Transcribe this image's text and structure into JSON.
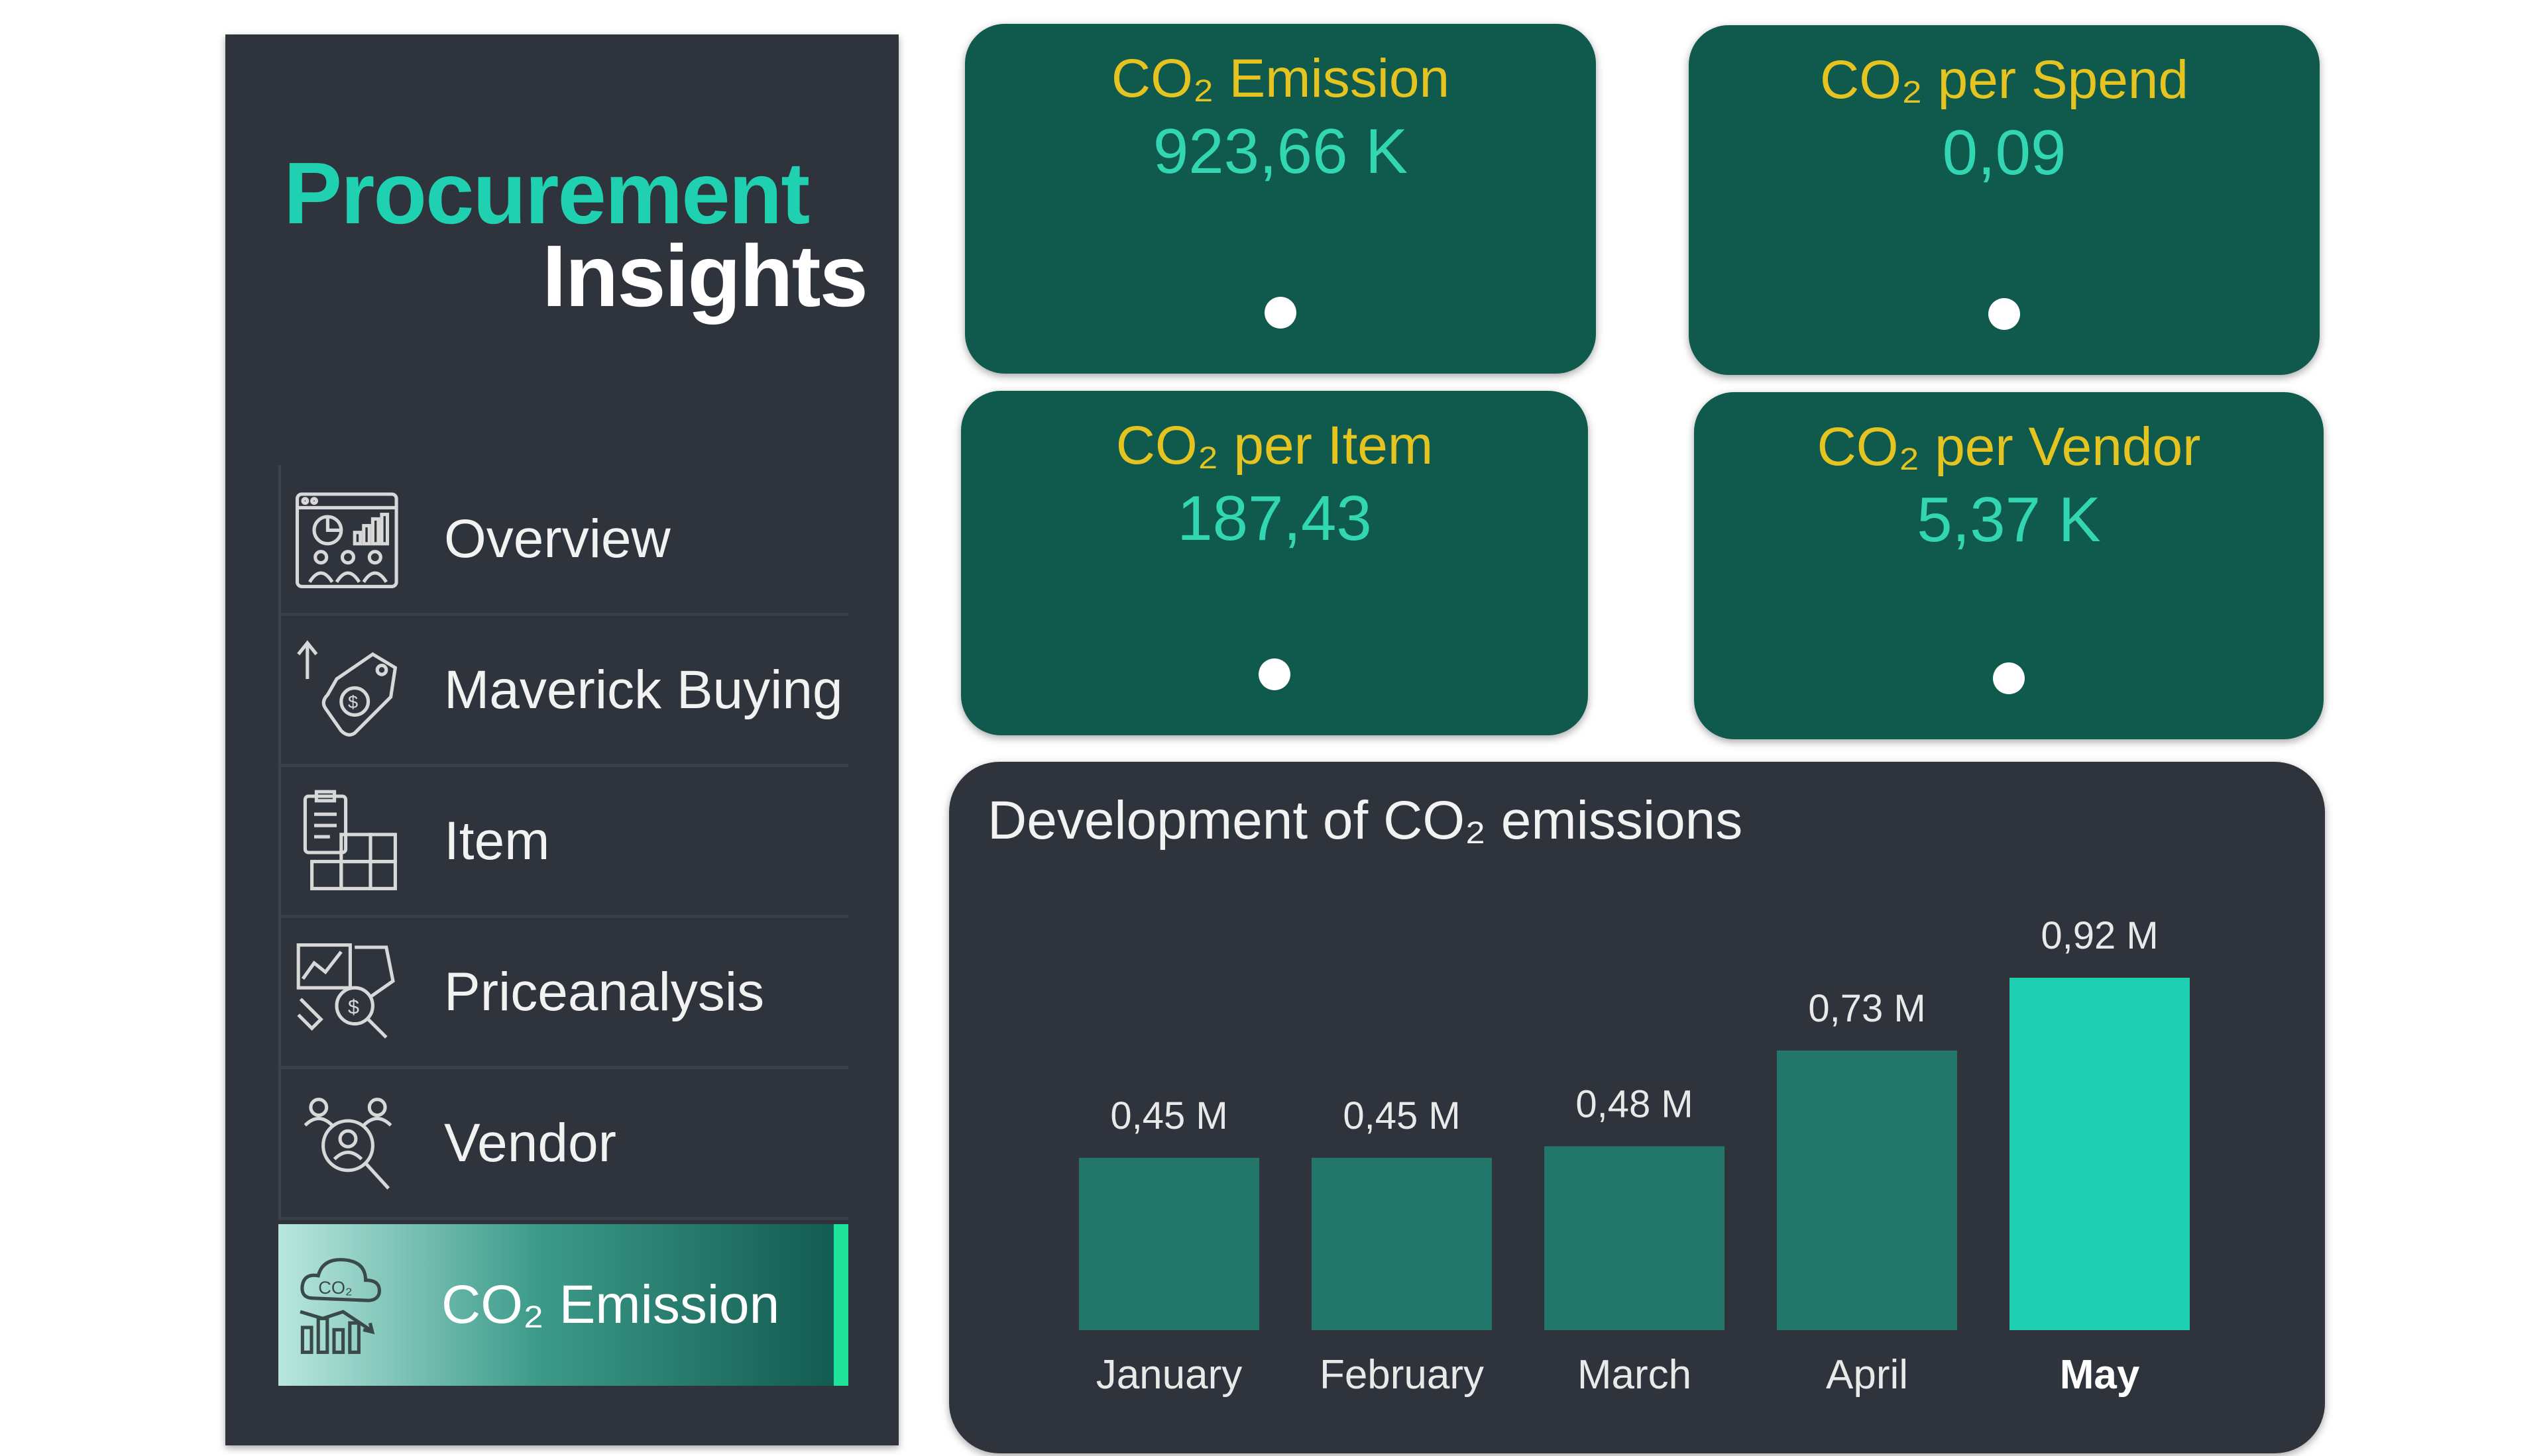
{
  "brand": {
    "line1": "Procurement",
    "line2": "Insights"
  },
  "nav": {
    "items": [
      {
        "label": "Overview",
        "icon": "dashboard-icon",
        "active": false
      },
      {
        "label": "Maverick Buying",
        "icon": "price-tag-icon",
        "active": false
      },
      {
        "label": "Item",
        "icon": "clipboard-boxes-icon",
        "active": false
      },
      {
        "label": "Priceanalysis",
        "icon": "price-analysis-icon",
        "active": false
      },
      {
        "label": "Vendor",
        "icon": "vendor-search-icon",
        "active": false
      },
      {
        "label": "CO₂ Emission",
        "icon": "co2-cloud-icon",
        "active": true
      }
    ]
  },
  "kpis": [
    {
      "title": "CO₂ Emission",
      "value": "923,66 K"
    },
    {
      "title": "CO₂ per Spend",
      "value": "0,09"
    },
    {
      "title": "CO₂ per Item",
      "value": "187,43"
    },
    {
      "title": "CO₂ per Vendor",
      "value": "5,37 K"
    }
  ],
  "colors": {
    "sidebar_bg": "#2f333b",
    "brand_accent": "#1fd1b0",
    "card_bg": "#0f5a4d",
    "card_title": "#e5c320",
    "card_value": "#32d7b2",
    "bar_default": "#22766a",
    "bar_highlight": "#1dcfb0",
    "active_indicator": "#1fe39b"
  },
  "chart_data": {
    "type": "bar",
    "title": "Development of CO₂ emissions",
    "categories": [
      "January",
      "February",
      "March",
      "April",
      "May"
    ],
    "values": [
      0.45,
      0.45,
      0.48,
      0.73,
      0.92
    ],
    "data_labels": [
      "0,45 M",
      "0,45 M",
      "0,48 M",
      "0,73 M",
      "0,92 M"
    ],
    "highlight_category": "May",
    "unit": "M",
    "ylim": [
      0,
      0.92
    ],
    "grid": false,
    "legend": "none"
  }
}
